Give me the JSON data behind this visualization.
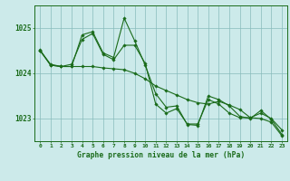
{
  "title": "Graphe pression niveau de la mer (hPa)",
  "bg_color": "#cceaea",
  "line_color": "#1a6b1a",
  "grid_color": "#88bbbb",
  "line1": [
    1024.5,
    1024.2,
    1024.15,
    1024.15,
    1024.85,
    1024.92,
    1024.45,
    1024.35,
    1025.22,
    1024.72,
    1024.18,
    1023.55,
    1023.25,
    1023.28,
    1022.87,
    1022.85,
    1023.5,
    1023.42,
    1023.28,
    1023.05,
    1023.0,
    1023.18,
    1022.98,
    1022.65
  ],
  "line2": [
    1024.52,
    1024.18,
    1024.15,
    1024.15,
    1024.15,
    1024.15,
    1024.12,
    1024.1,
    1024.08,
    1024.0,
    1023.88,
    1023.72,
    1023.62,
    1023.52,
    1023.42,
    1023.35,
    1023.32,
    1023.38,
    1023.3,
    1023.2,
    1023.02,
    1023.0,
    1022.92,
    1022.62
  ],
  "line3": [
    1024.5,
    1024.18,
    1024.15,
    1024.2,
    1024.75,
    1024.88,
    1024.42,
    1024.3,
    1024.62,
    1024.62,
    1024.22,
    1023.32,
    1023.12,
    1023.22,
    1022.88,
    1022.88,
    1023.42,
    1023.32,
    1023.12,
    1023.02,
    1023.02,
    1023.12,
    1023.0,
    1022.75
  ],
  "ylim": [
    1022.5,
    1025.5
  ],
  "yticks": [
    1023,
    1024,
    1025
  ],
  "hours": [
    0,
    1,
    2,
    3,
    4,
    5,
    6,
    7,
    8,
    9,
    10,
    11,
    12,
    13,
    14,
    15,
    16,
    17,
    18,
    19,
    20,
    21,
    22,
    23
  ]
}
